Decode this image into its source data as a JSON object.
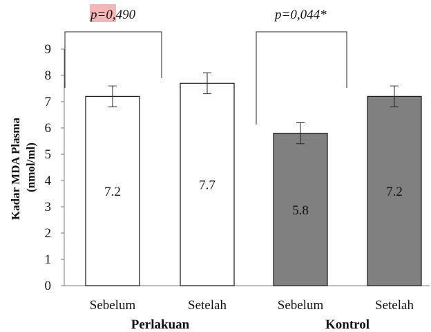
{
  "chart_data": {
    "type": "bar",
    "ylabel_line1": "Kadar MDA Plasma",
    "ylabel_line2": "(nmol/ml)",
    "ylim": [
      0,
      9
    ],
    "yticks": [
      "0",
      "1",
      "2",
      "3",
      "4",
      "5",
      "6",
      "7",
      "8",
      "9"
    ],
    "categories": [
      "Sebelum",
      "Setelah",
      "Sebelum",
      "Setelah"
    ],
    "groups": [
      "Perlakuan",
      "Kontrol"
    ],
    "values": [
      7.2,
      7.7,
      5.8,
      7.2
    ],
    "value_labels": [
      "7.2",
      "7.7",
      "5.8",
      "7.2"
    ],
    "error": [
      0.4,
      0.4,
      0.4,
      0.4
    ],
    "bar_colors": [
      "#ffffff",
      "#ffffff",
      "#808080",
      "#808080"
    ],
    "p_values": [
      "p=0,490",
      "p=0,044*"
    ],
    "highlight_color": "#f4b6b6",
    "grid": false,
    "legend": "none"
  }
}
